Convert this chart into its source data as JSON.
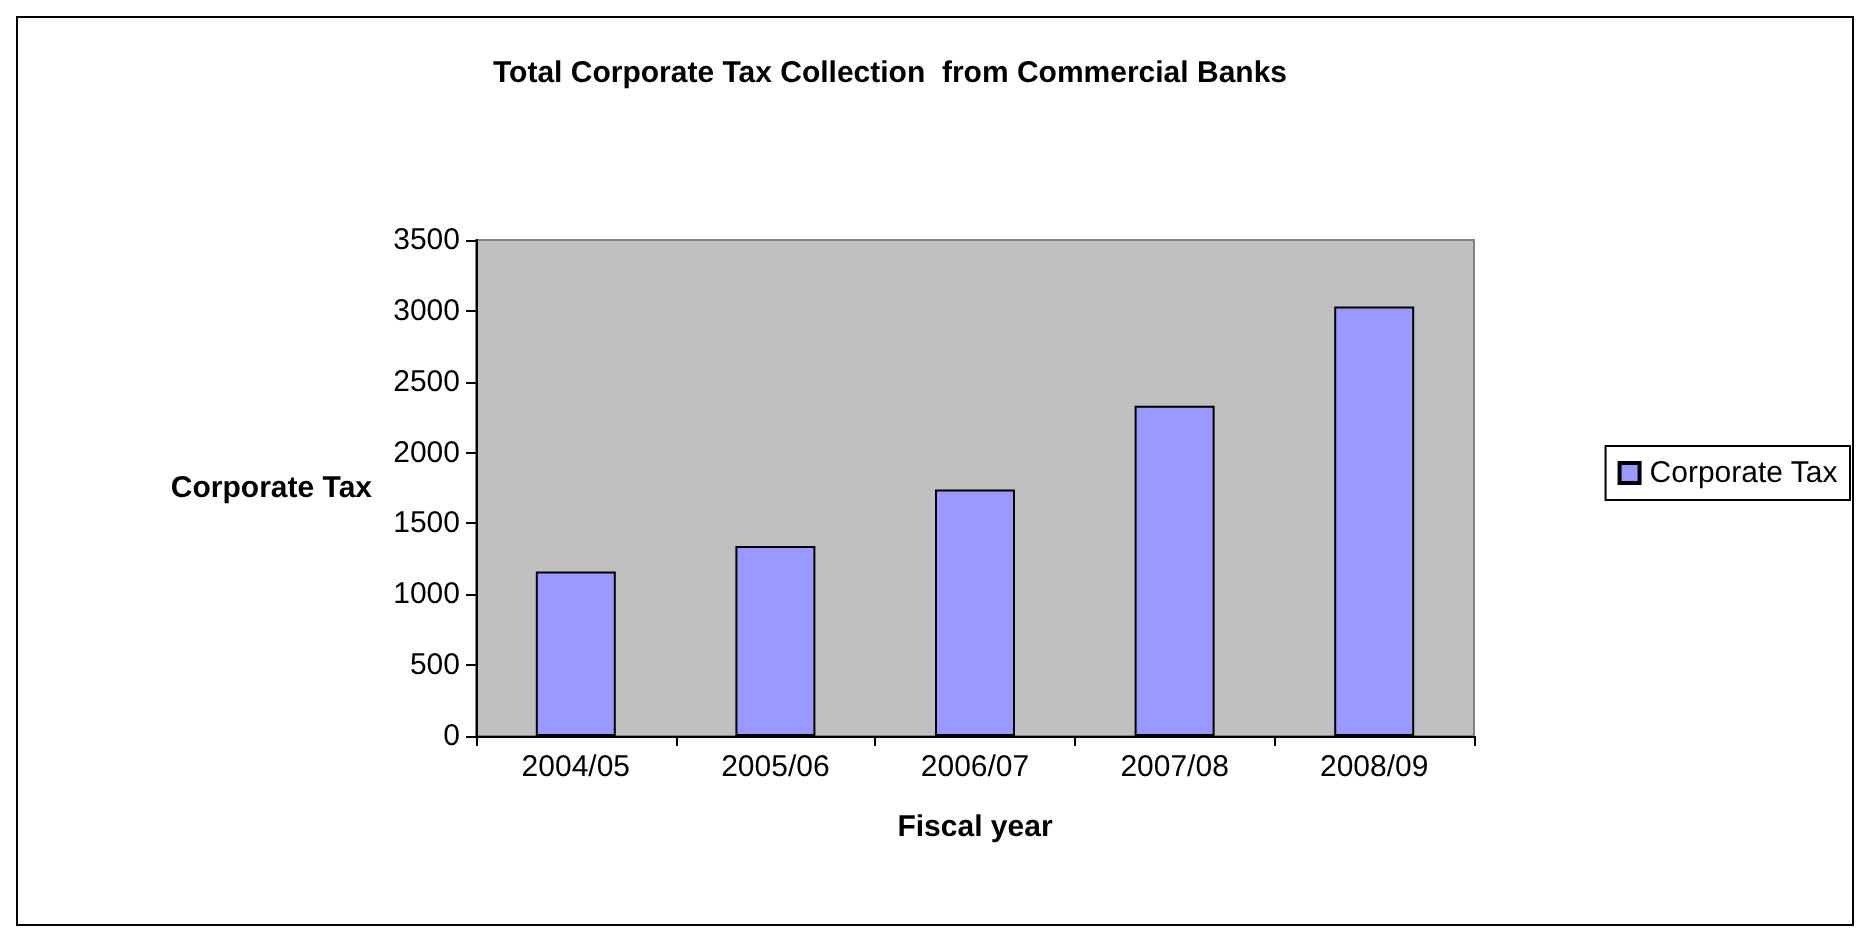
{
  "chart_data": {
    "type": "bar",
    "title": "Total Corporate Tax Collection  from Commercial Banks",
    "xlabel": "Fiscal year",
    "ylabel": "Corporate Tax",
    "categories": [
      "2004/05",
      "2005/06",
      "2006/07",
      "2007/08",
      "2008/09"
    ],
    "series": [
      {
        "name": "Corporate Tax",
        "color": "#9999ff",
        "values": [
          1160,
          1340,
          1740,
          2330,
          3030
        ]
      }
    ],
    "ylim": [
      0,
      3500
    ],
    "yticks": [
      0,
      500,
      1000,
      1500,
      2000,
      2500,
      3000,
      3500
    ],
    "grid": false,
    "legend": "right"
  }
}
